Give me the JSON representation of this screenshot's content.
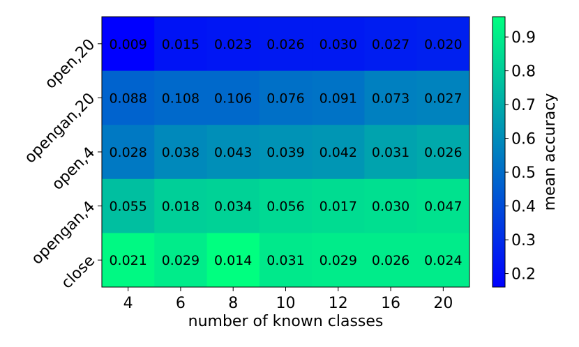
{
  "chart_data": {
    "type": "heatmap",
    "title": "",
    "xlabel": "number of known classes",
    "ylabel": "",
    "x_categories": [
      "4",
      "6",
      "8",
      "10",
      "12",
      "16",
      "20"
    ],
    "y_categories": [
      "open,20",
      "opengan,20",
      "open,4",
      "opengan,4",
      "close"
    ],
    "cell_labels": [
      [
        "0.009",
        "0.015",
        "0.023",
        "0.026",
        "0.030",
        "0.027",
        "0.020"
      ],
      [
        "0.088",
        "0.108",
        "0.106",
        "0.076",
        "0.091",
        "0.073",
        "0.027"
      ],
      [
        "0.028",
        "0.038",
        "0.043",
        "0.039",
        "0.042",
        "0.031",
        "0.026"
      ],
      [
        "0.055",
        "0.018",
        "0.034",
        "0.056",
        "0.017",
        "0.030",
        "0.047"
      ],
      [
        "0.021",
        "0.029",
        "0.014",
        "0.031",
        "0.029",
        "0.026",
        "0.024"
      ]
    ],
    "mean_accuracy": [
      [
        0.16,
        0.22,
        0.23,
        0.24,
        0.24,
        0.25,
        0.26
      ],
      [
        0.47,
        0.49,
        0.49,
        0.51,
        0.52,
        0.56,
        0.57
      ],
      [
        0.54,
        0.59,
        0.61,
        0.62,
        0.63,
        0.67,
        0.69
      ],
      [
        0.76,
        0.81,
        0.82,
        0.84,
        0.85,
        0.86,
        0.87
      ],
      [
        0.94,
        0.9,
        0.96,
        0.89,
        0.9,
        0.9,
        0.9
      ]
    ],
    "colorbar": {
      "label": "mean accuracy",
      "range": [
        0.16,
        0.96
      ],
      "ticks": [
        "0.2",
        "0.3",
        "0.4",
        "0.5",
        "0.6",
        "0.7",
        "0.8",
        "0.9"
      ],
      "low_color": "#0000ff",
      "high_color": "#00ff80"
    },
    "grid": false
  }
}
